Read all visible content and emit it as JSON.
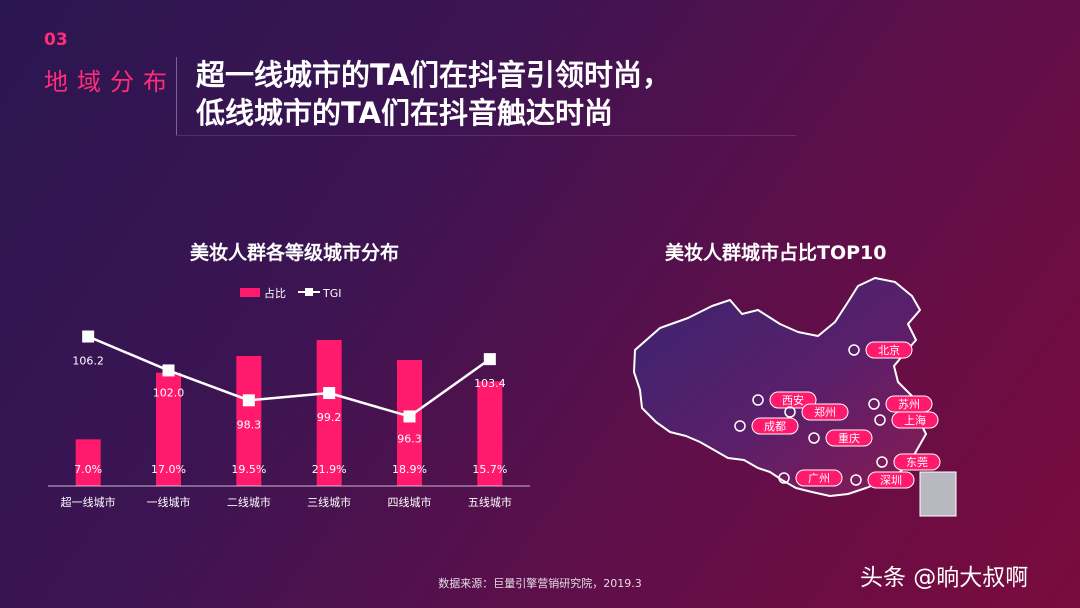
{
  "section": {
    "number": "03",
    "name": "地域分布"
  },
  "headline": {
    "line1": "超一线城市的TA们在抖音引领时尚，",
    "line2": "低线城市的TA们在抖音触达时尚"
  },
  "chart_data": {
    "type": "bar",
    "title": "美妆人群各等级城市分布",
    "categories": [
      "超一线城市",
      "一线城市",
      "二线城市",
      "三线城市",
      "四线城市",
      "五线城市"
    ],
    "series": [
      {
        "name": "占比",
        "type": "bar",
        "values": [
          7.0,
          17.0,
          19.5,
          21.9,
          18.9,
          15.7
        ],
        "labels": [
          "7.0%",
          "17.0%",
          "19.5%",
          "21.9%",
          "18.9%",
          "15.7%"
        ]
      },
      {
        "name": "TGI",
        "type": "line",
        "values": [
          106.2,
          102.0,
          98.3,
          99.2,
          96.3,
          103.4
        ],
        "labels": [
          "106.2",
          "102.0",
          "98.3",
          "99.2",
          "96.3",
          "103.4"
        ]
      }
    ],
    "legend_position": "top",
    "colors": {
      "bar": "#ff1a6d",
      "line": "#ffffff"
    }
  },
  "map": {
    "title": "美妆人群城市占比TOP10",
    "cities": [
      "北京",
      "西安",
      "苏州",
      "郑州",
      "上海",
      "成都",
      "重庆",
      "东莞",
      "广州",
      "深圳"
    ],
    "colors": {
      "land": "#3a1f66",
      "marker": "#ff1a6d"
    }
  },
  "source": "数据来源：巨量引擎营销研究院，2019.3",
  "watermark": "头条 @晌大叔啊"
}
